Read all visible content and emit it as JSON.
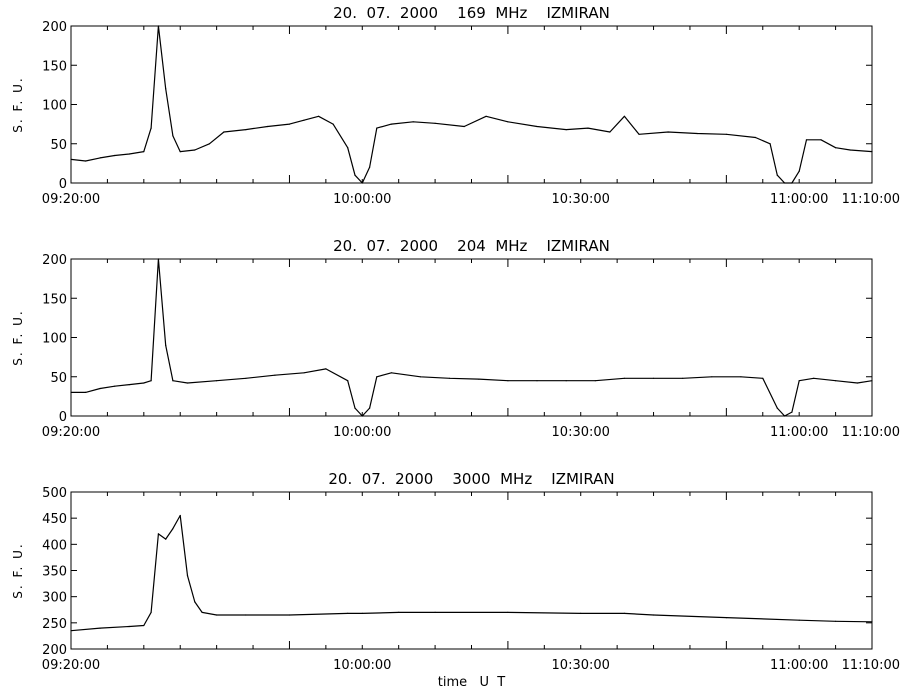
{
  "chart_data": [
    {
      "type": "line",
      "title": "20.  07.  2000    169  MHz    IZMIRAN",
      "ylabel": "S. F. U.",
      "xlabel": "",
      "xlim": [
        "09:20:00",
        "11:10:00"
      ],
      "ylim": [
        0,
        200
      ],
      "yticks": [
        0,
        50,
        100,
        150,
        200
      ],
      "xticks": [
        "09:20:00",
        "10:00:00",
        "10:30:00",
        "11:00:00",
        "11:10:00"
      ],
      "series": [
        {
          "points": [
            [
              "09:20:00",
              30
            ],
            [
              "09:22:00",
              28
            ],
            [
              "09:24:00",
              32
            ],
            [
              "09:26:00",
              35
            ],
            [
              "09:28:00",
              37
            ],
            [
              "09:30:00",
              40
            ],
            [
              "09:31:00",
              70
            ],
            [
              "09:32:00",
              200
            ],
            [
              "09:33:00",
              120
            ],
            [
              "09:34:00",
              60
            ],
            [
              "09:35:00",
              40
            ],
            [
              "09:37:00",
              42
            ],
            [
              "09:39:00",
              50
            ],
            [
              "09:41:00",
              65
            ],
            [
              "09:44:00",
              68
            ],
            [
              "09:47:00",
              72
            ],
            [
              "09:50:00",
              75
            ],
            [
              "09:52:00",
              80
            ],
            [
              "09:54:00",
              85
            ],
            [
              "09:56:00",
              75
            ],
            [
              "09:58:00",
              45
            ],
            [
              "09:59:00",
              10
            ],
            [
              "10:00:00",
              0
            ],
            [
              "10:01:00",
              20
            ],
            [
              "10:02:00",
              70
            ],
            [
              "10:04:00",
              75
            ],
            [
              "10:07:00",
              78
            ],
            [
              "10:10:00",
              76
            ],
            [
              "10:14:00",
              72
            ],
            [
              "10:17:00",
              85
            ],
            [
              "10:20:00",
              78
            ],
            [
              "10:24:00",
              72
            ],
            [
              "10:28:00",
              68
            ],
            [
              "10:31:00",
              70
            ],
            [
              "10:34:00",
              65
            ],
            [
              "10:36:00",
              85
            ],
            [
              "10:38:00",
              62
            ],
            [
              "10:42:00",
              65
            ],
            [
              "10:46:00",
              63
            ],
            [
              "10:50:00",
              62
            ],
            [
              "10:54:00",
              58
            ],
            [
              "10:56:00",
              50
            ],
            [
              "10:57:00",
              10
            ],
            [
              "10:58:00",
              0
            ],
            [
              "10:59:00",
              0
            ],
            [
              "11:00:00",
              15
            ],
            [
              "11:01:00",
              55
            ],
            [
              "11:03:00",
              55
            ],
            [
              "11:05:00",
              45
            ],
            [
              "11:07:00",
              42
            ],
            [
              "11:10:00",
              40
            ]
          ]
        }
      ]
    },
    {
      "type": "line",
      "title": "20.  07.  2000    204  MHz    IZMIRAN",
      "ylabel": "S. F. U.",
      "xlabel": "",
      "xlim": [
        "09:20:00",
        "11:10:00"
      ],
      "ylim": [
        0,
        200
      ],
      "yticks": [
        0,
        50,
        100,
        150,
        200
      ],
      "xticks": [
        "09:20:00",
        "10:00:00",
        "10:30:00",
        "11:00:00",
        "11:10:00"
      ],
      "series": [
        {
          "points": [
            [
              "09:20:00",
              30
            ],
            [
              "09:22:00",
              30
            ],
            [
              "09:24:00",
              35
            ],
            [
              "09:26:00",
              38
            ],
            [
              "09:28:00",
              40
            ],
            [
              "09:30:00",
              42
            ],
            [
              "09:31:00",
              45
            ],
            [
              "09:32:00",
              200
            ],
            [
              "09:33:00",
              90
            ],
            [
              "09:34:00",
              45
            ],
            [
              "09:36:00",
              42
            ],
            [
              "09:40:00",
              45
            ],
            [
              "09:44:00",
              48
            ],
            [
              "09:48:00",
              52
            ],
            [
              "09:52:00",
              55
            ],
            [
              "09:55:00",
              60
            ],
            [
              "09:58:00",
              45
            ],
            [
              "09:59:00",
              10
            ],
            [
              "10:00:00",
              0
            ],
            [
              "10:01:00",
              10
            ],
            [
              "10:02:00",
              50
            ],
            [
              "10:04:00",
              55
            ],
            [
              "10:08:00",
              50
            ],
            [
              "10:12:00",
              48
            ],
            [
              "10:16:00",
              47
            ],
            [
              "10:20:00",
              45
            ],
            [
              "10:24:00",
              45
            ],
            [
              "10:28:00",
              45
            ],
            [
              "10:32:00",
              45
            ],
            [
              "10:36:00",
              48
            ],
            [
              "10:40:00",
              48
            ],
            [
              "10:44:00",
              48
            ],
            [
              "10:48:00",
              50
            ],
            [
              "10:52:00",
              50
            ],
            [
              "10:55:00",
              48
            ],
            [
              "10:57:00",
              10
            ],
            [
              "10:58:00",
              0
            ],
            [
              "10:59:00",
              5
            ],
            [
              "11:00:00",
              45
            ],
            [
              "11:02:00",
              48
            ],
            [
              "11:05:00",
              45
            ],
            [
              "11:08:00",
              42
            ],
            [
              "11:10:00",
              45
            ]
          ]
        }
      ]
    },
    {
      "type": "line",
      "title": "20.  07.  2000    3000  MHz    IZMIRAN",
      "ylabel": "S. F. U.",
      "xlabel": "time   U  T",
      "xlim": [
        "09:20:00",
        "11:10:00"
      ],
      "ylim": [
        200,
        500
      ],
      "yticks": [
        200,
        250,
        300,
        350,
        400,
        450,
        500
      ],
      "xticks": [
        "09:20:00",
        "10:00:00",
        "10:30:00",
        "11:00:00",
        "11:10:00"
      ],
      "series": [
        {
          "points": [
            [
              "09:20:00",
              235
            ],
            [
              "09:24:00",
              240
            ],
            [
              "09:28:00",
              243
            ],
            [
              "09:30:00",
              245
            ],
            [
              "09:31:00",
              270
            ],
            [
              "09:32:00",
              420
            ],
            [
              "09:33:00",
              410
            ],
            [
              "09:34:00",
              430
            ],
            [
              "09:35:00",
              455
            ],
            [
              "09:36:00",
              340
            ],
            [
              "09:37:00",
              290
            ],
            [
              "09:38:00",
              270
            ],
            [
              "09:40:00",
              265
            ],
            [
              "09:44:00",
              265
            ],
            [
              "09:50:00",
              265
            ],
            [
              "09:58:00",
              268
            ],
            [
              "10:00:00",
              268
            ],
            [
              "10:05:00",
              270
            ],
            [
              "10:10:00",
              270
            ],
            [
              "10:20:00",
              270
            ],
            [
              "10:30:00",
              268
            ],
            [
              "10:36:00",
              268
            ],
            [
              "10:40:00",
              265
            ],
            [
              "10:50:00",
              260
            ],
            [
              "11:00:00",
              255
            ],
            [
              "11:05:00",
              253
            ],
            [
              "11:10:00",
              252
            ]
          ]
        }
      ]
    }
  ]
}
